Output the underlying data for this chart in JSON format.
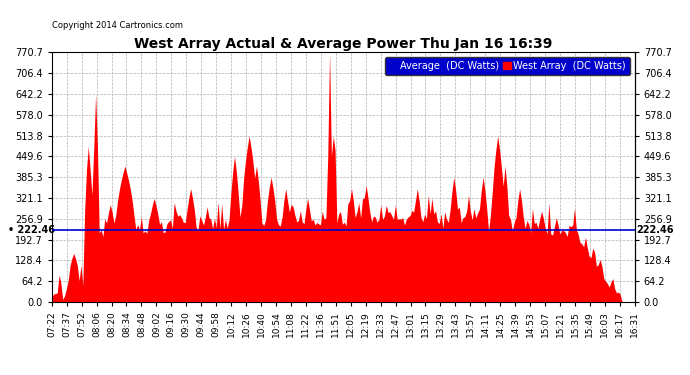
{
  "title": "West Array Actual & Average Power Thu Jan 16 16:39",
  "copyright": "Copyright 2014 Cartronics.com",
  "avg_line_value": 222.46,
  "ymin": 0.0,
  "ymax": 770.7,
  "yticks": [
    0.0,
    64.2,
    128.4,
    192.7,
    256.9,
    321.1,
    385.3,
    449.6,
    513.8,
    578.0,
    642.2,
    706.4,
    770.7
  ],
  "ytick_labels": [
    "0.0",
    "64.2",
    "128.4",
    "192.7",
    "256.9",
    "321.1",
    "385.3",
    "449.6",
    "513.8",
    "578.0",
    "642.2",
    "706.4",
    "770.7"
  ],
  "background_color": "#ffffff",
  "plot_bg_color": "#ffffff",
  "grid_color": "#b0b0b0",
  "red_color": "#ff0000",
  "blue_color": "#0000cc",
  "avg_label": "Average  (DC Watts)",
  "west_label": "West Array  (DC Watts)",
  "xtick_labels": [
    "07:22",
    "07:37",
    "07:52",
    "08:06",
    "08:20",
    "08:34",
    "08:48",
    "09:02",
    "09:16",
    "09:30",
    "09:44",
    "09:58",
    "10:12",
    "10:26",
    "10:40",
    "10:54",
    "11:08",
    "11:22",
    "11:36",
    "11:51",
    "12:05",
    "12:19",
    "12:33",
    "12:47",
    "13:01",
    "13:15",
    "13:29",
    "13:43",
    "13:57",
    "14:11",
    "14:25",
    "14:39",
    "14:53",
    "15:07",
    "15:21",
    "15:35",
    "15:49",
    "16:03",
    "16:17",
    "16:31"
  ]
}
